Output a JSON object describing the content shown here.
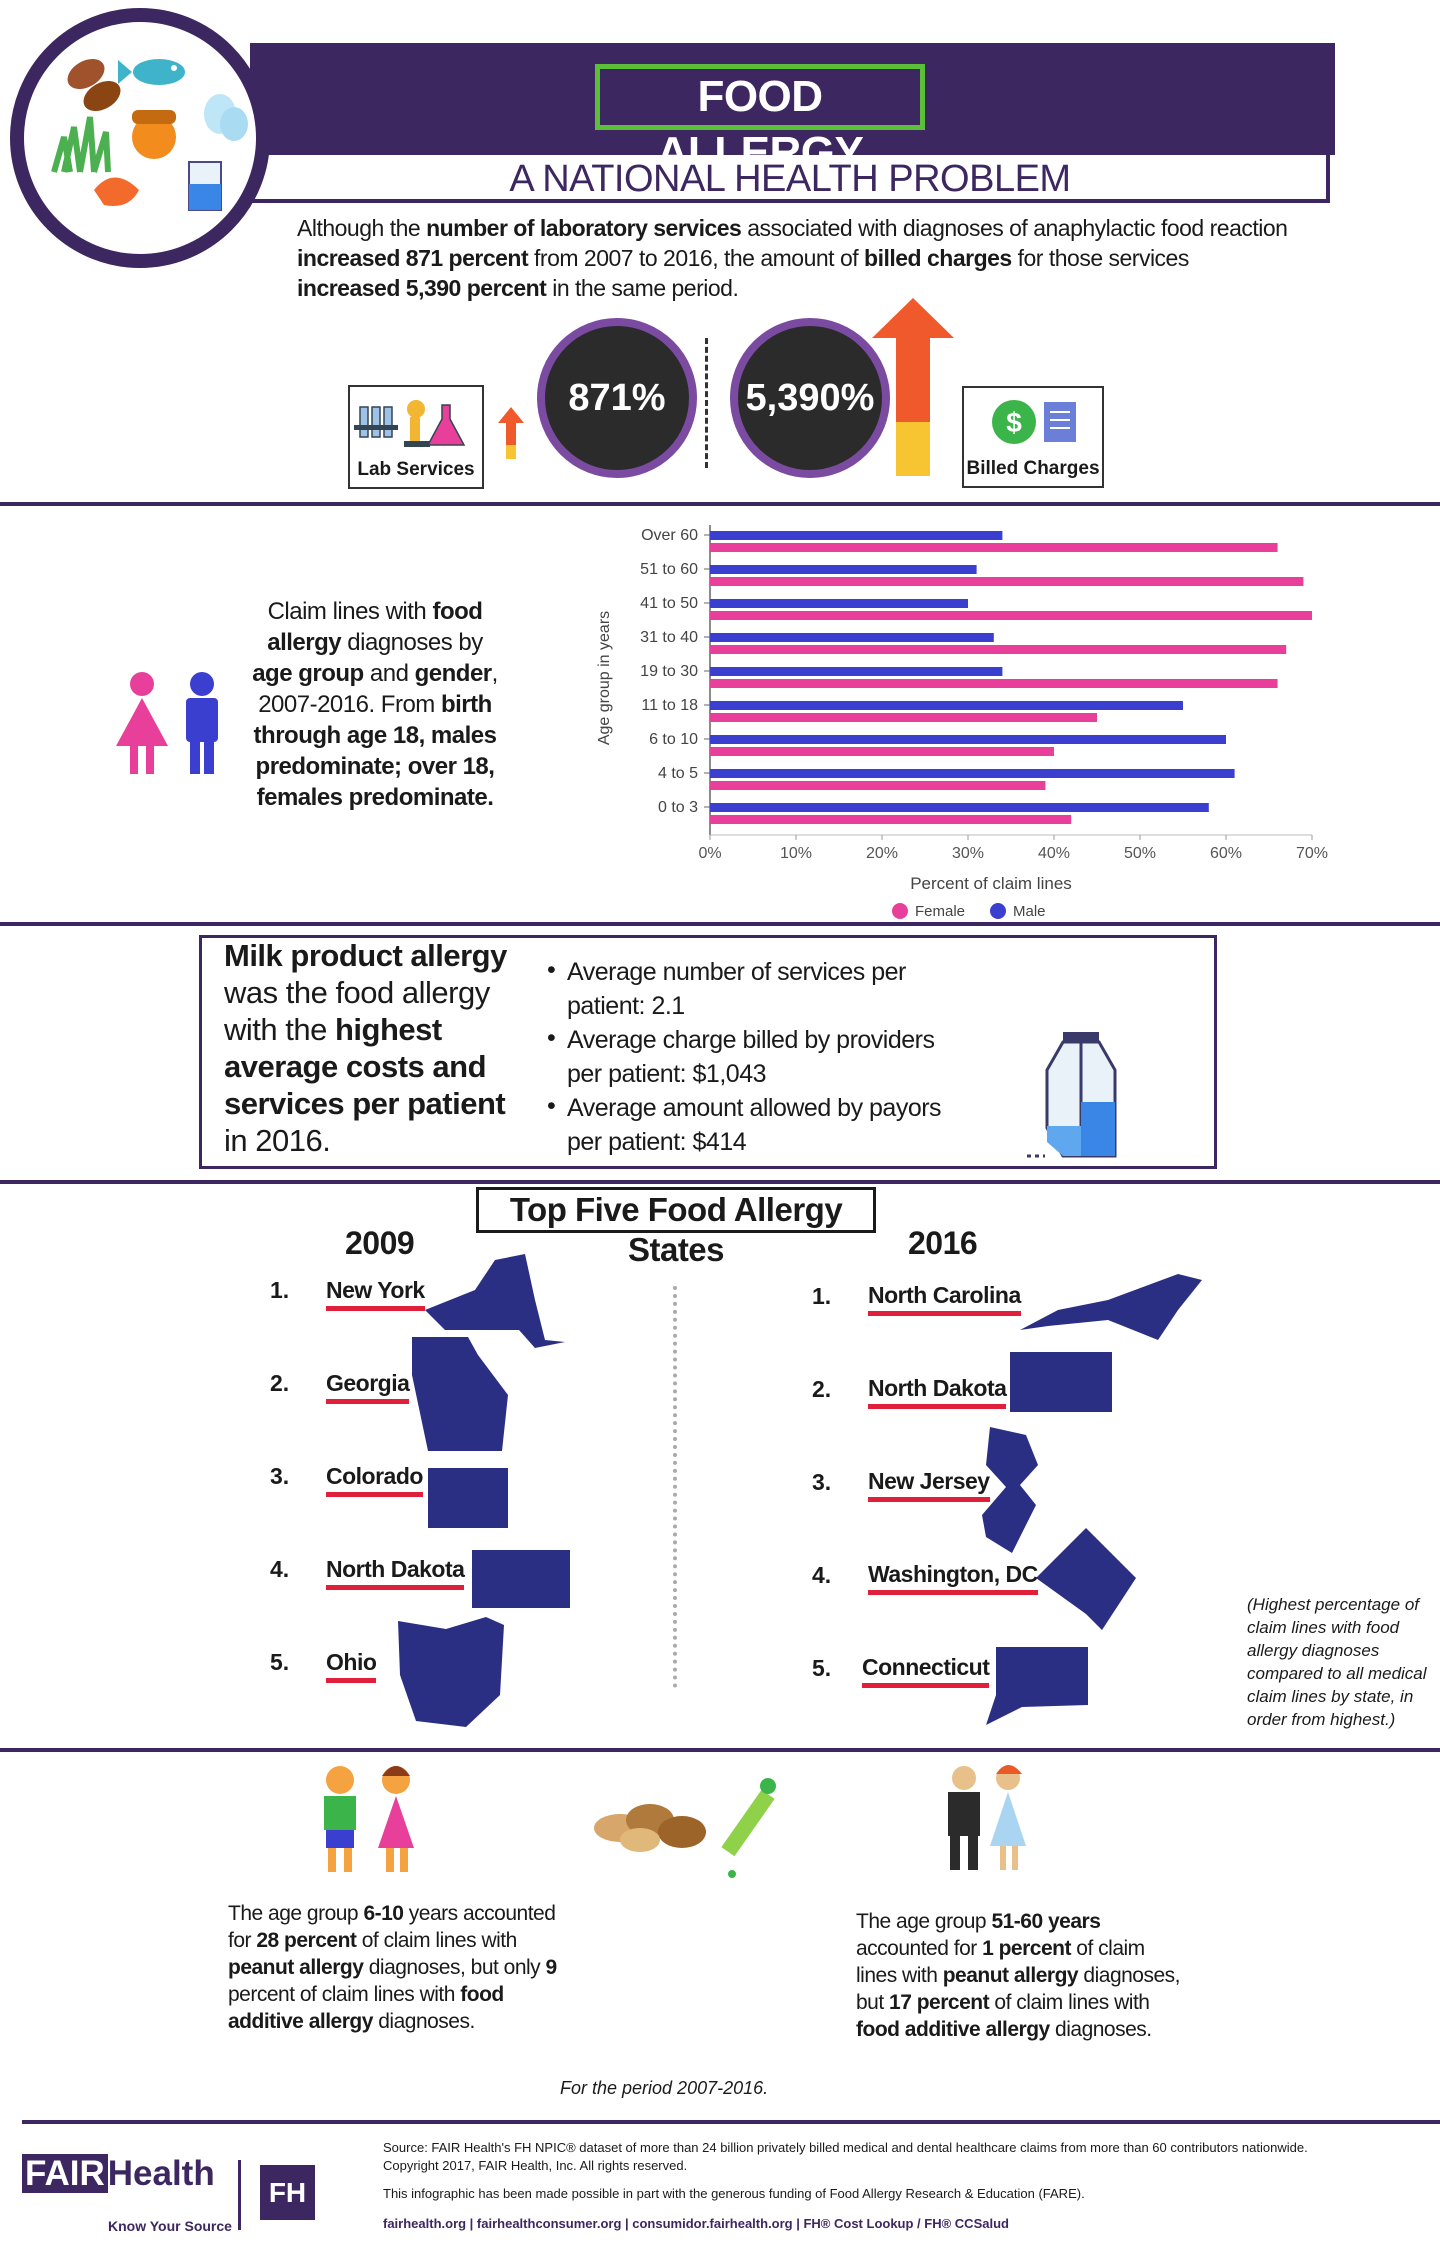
{
  "header": {
    "title": "FOOD ALLERGY",
    "subtitle": "A NATIONAL HEALTH PROBLEM"
  },
  "intro": {
    "p1": "Although the ",
    "b1": "number of laboratory services",
    "p2": " associated with diagnoses of anaphylactic food reaction ",
    "b2": "increased 871 percent",
    "p3": " from 2007 to 2016, the amount of ",
    "b3": "billed charges",
    "p4": " for those services ",
    "b4": "increased 5,390 percent",
    "p5": " in the same period."
  },
  "stats": {
    "lab_value": "871%",
    "billed_value": "5,390%",
    "lab_label": "Lab Services",
    "billed_label": "Billed Charges"
  },
  "chart_text": {
    "t1": "Claim lines with ",
    "b1": "food allergy",
    "t2": " diagnoses by ",
    "b2": "age group",
    "t3": " and ",
    "b3": "gender",
    "t4": ", 2007-2016. From ",
    "b4": "birth through age 18, males predominate; over 18, females predominate."
  },
  "chart_data": {
    "type": "bar",
    "orientation": "horizontal",
    "title": "",
    "xlabel": "Percent of claim lines",
    "ylabel": "Age group in years",
    "xlim": [
      0,
      70
    ],
    "x_ticks": [
      "0%",
      "10%",
      "20%",
      "30%",
      "40%",
      "50%",
      "60%",
      "70%"
    ],
    "categories": [
      "Over 60",
      "51 to 60",
      "41 to 50",
      "31 to 40",
      "19 to 30",
      "11 to 18",
      "6 to 10",
      "4 to 5",
      "0 to 3"
    ],
    "series": [
      {
        "name": "Male",
        "color": "#3b3fd0",
        "values": [
          34,
          31,
          30,
          33,
          34,
          55,
          60,
          61,
          58
        ]
      },
      {
        "name": "Female",
        "color": "#e8409a",
        "values": [
          66,
          69,
          70,
          67,
          66,
          45,
          40,
          39,
          42
        ]
      }
    ],
    "legend": [
      "Female",
      "Male"
    ],
    "legend_position": "bottom"
  },
  "milk": {
    "l1": "Milk product allergy",
    "l2": "was the food allergy",
    "l3": "with the ",
    "l3b": "highest",
    "l4": "average costs and",
    "l5": "services per patient",
    "l6": "in 2016.",
    "bullets": [
      {
        "a": "Average number of services per",
        "b": "patient: 2.1"
      },
      {
        "a": "Average charge billed by providers",
        "b": "per patient: $1,043"
      },
      {
        "a": "Average amount allowed by payors",
        "b": "per patient: $414"
      }
    ]
  },
  "states": {
    "title": "Top Five Food Allergy States",
    "year1": "2009",
    "year2": "2016",
    "list1": [
      {
        "n": "1.",
        "name": "New York"
      },
      {
        "n": "2.",
        "name": "Georgia"
      },
      {
        "n": "3.",
        "name": "Colorado"
      },
      {
        "n": "4.",
        "name": "North Dakota"
      },
      {
        "n": "5.",
        "name": "Ohio"
      }
    ],
    "list2": [
      {
        "n": "1.",
        "name": "North Carolina"
      },
      {
        "n": "2.",
        "name": "North Dakota"
      },
      {
        "n": "3.",
        "name": "New Jersey"
      },
      {
        "n": "4.",
        "name": "Washington, DC"
      },
      {
        "n": "5.",
        "name": "Connecticut"
      }
    ],
    "note": "(Highest percentage of claim lines with food allergy diagnoses compared to all medical claim lines by state, in order from highest.)"
  },
  "bottom": {
    "left": {
      "t1": "The age group ",
      "b1": "6-10",
      "t2": " years accounted for ",
      "b2": "28 percent",
      "t3": " of claim lines with ",
      "b3": "peanut allergy",
      "t4": " diagnoses, but only ",
      "b4": "9",
      "t5": " percent of claim lines with ",
      "b5": "food additive allergy",
      "t6": " diagnoses."
    },
    "right": {
      "t1": "The age group ",
      "b1": "51-60 years",
      "t2": " accounted for ",
      "b2": "1 percent",
      "t3": " of claim lines with ",
      "b3": "peanut allergy",
      "t4": " diagnoses, but ",
      "b4": "17 percent",
      "t5": " of claim lines with ",
      "b5": "food additive allergy",
      "t6": " diagnoses."
    },
    "period": "For the period 2007-2016."
  },
  "footer": {
    "source": "Source: FAIR Health's FH NPIC® dataset of more than 24 billion privately billed medical and dental healthcare claims from more than 60 contributors nationwide.",
    "copyright": "Copyright 2017, FAIR Health, Inc. All rights reserved.",
    "funding": "This infographic has been made possible in part with the generous funding of Food Allergy Research & Education (FARE).",
    "links": "fairhealth.org  |  fairhealthconsumer.org  |  consumidor.fairhealth.org  |  FH® Cost Lookup / FH® CCSalud",
    "logo_fair": "FAIR",
    "logo_health": "Health",
    "logo_tag": "Know Your Source",
    "logo_fh": "FH"
  }
}
